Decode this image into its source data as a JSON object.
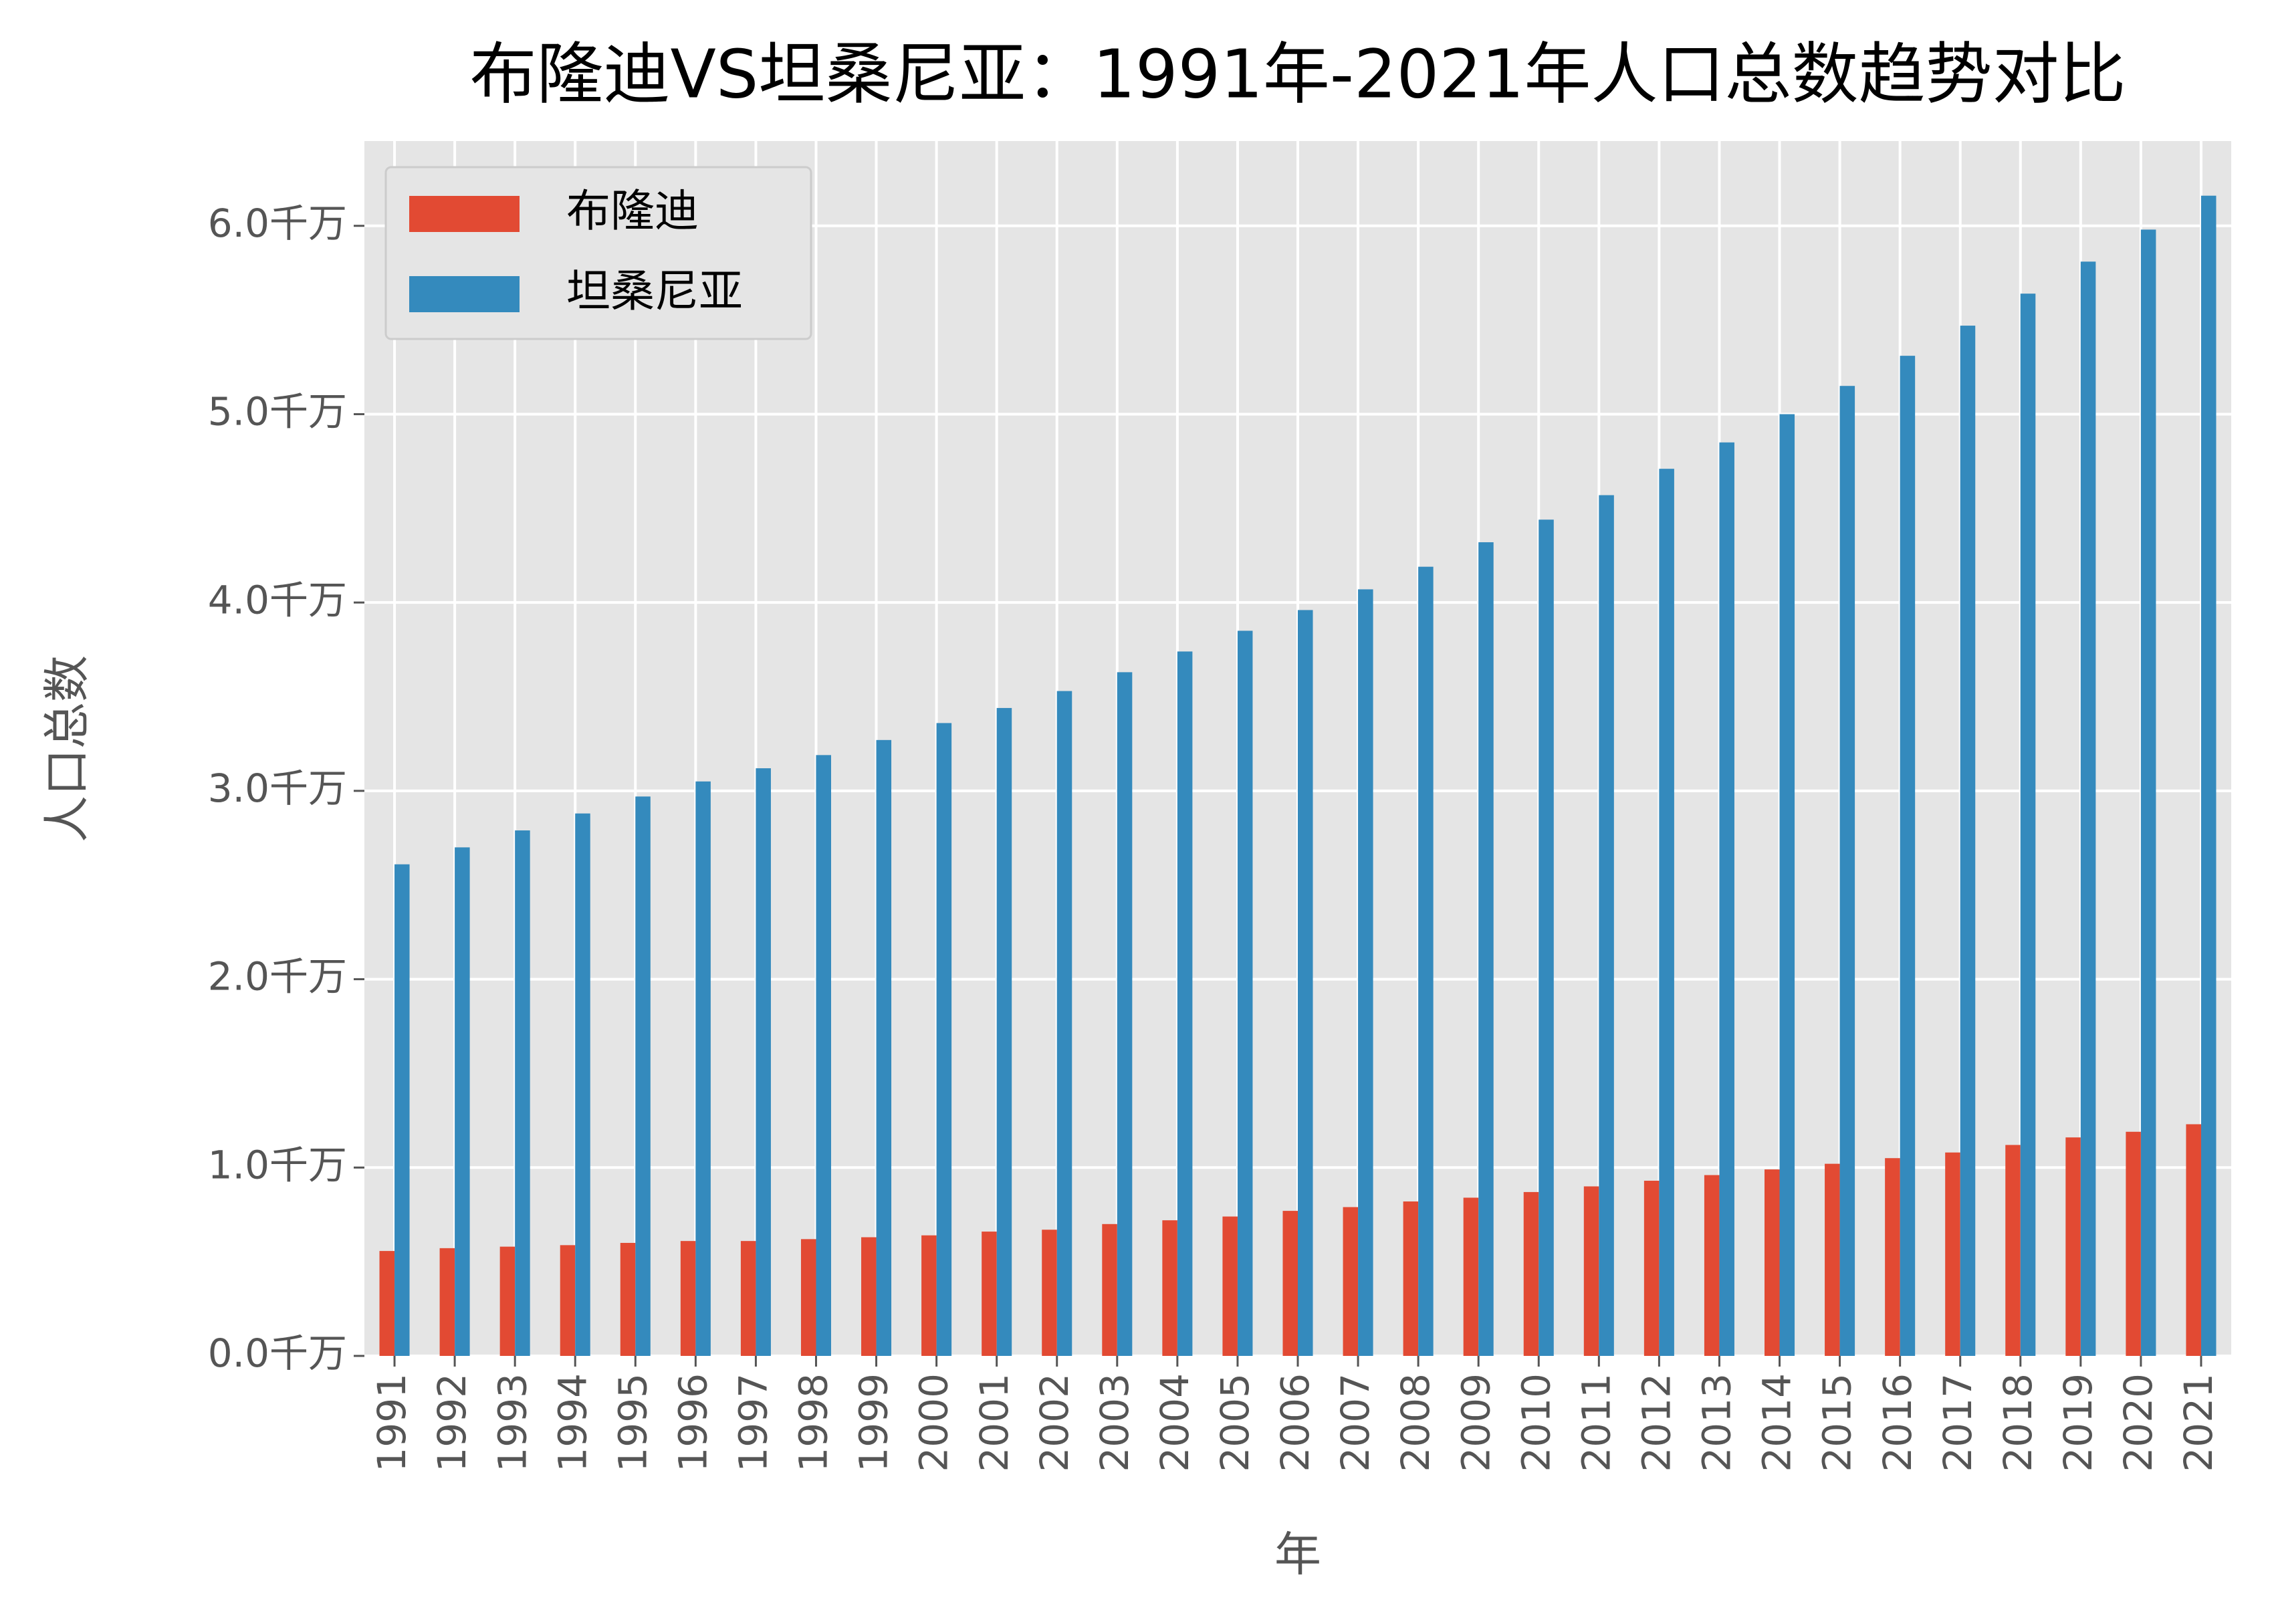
{
  "chart_data": {
    "type": "bar",
    "title": "布隆迪VS坦桑尼亚：1991年-2021年人口总数趋势对比",
    "x_label": "年",
    "y_label": "人口总数",
    "categories": [
      "1991",
      "1992",
      "1993",
      "1994",
      "1995",
      "1996",
      "1997",
      "1998",
      "1999",
      "2000",
      "2001",
      "2002",
      "2003",
      "2004",
      "2005",
      "2006",
      "2007",
      "2008",
      "2009",
      "2010",
      "2011",
      "2012",
      "2013",
      "2014",
      "2015",
      "2016",
      "2017",
      "2018",
      "2019",
      "2020",
      "2021"
    ],
    "series": [
      {
        "name": "布隆迪",
        "color": "#e24a33",
        "values": [
          0.557,
          0.572,
          0.58,
          0.588,
          0.6,
          0.61,
          0.61,
          0.62,
          0.63,
          0.64,
          0.66,
          0.67,
          0.7,
          0.72,
          0.74,
          0.77,
          0.79,
          0.82,
          0.84,
          0.87,
          0.9,
          0.93,
          0.96,
          0.99,
          1.02,
          1.05,
          1.08,
          1.12,
          1.16,
          1.19,
          1.23
        ]
      },
      {
        "name": "坦桑尼亚",
        "color": "#348abd",
        "values": [
          2.61,
          2.7,
          2.79,
          2.88,
          2.97,
          3.05,
          3.12,
          3.19,
          3.27,
          3.36,
          3.44,
          3.53,
          3.63,
          3.74,
          3.85,
          3.96,
          4.07,
          4.19,
          4.32,
          4.44,
          4.57,
          4.71,
          4.85,
          5.0,
          5.15,
          5.31,
          5.47,
          5.64,
          5.81,
          5.98,
          6.16
        ]
      }
    ],
    "ylim": [
      0,
      6.45
    ],
    "yticks": [
      {
        "value": 0,
        "label": "0.0千万"
      },
      {
        "value": 1,
        "label": "1.0千万"
      },
      {
        "value": 2,
        "label": "2.0千万"
      },
      {
        "value": 3,
        "label": "3.0千万"
      },
      {
        "value": 4,
        "label": "4.0千万"
      },
      {
        "value": 5,
        "label": "5.0千万"
      },
      {
        "value": 6,
        "label": "6.0千万"
      }
    ],
    "grid": true,
    "legend": "upper left"
  }
}
